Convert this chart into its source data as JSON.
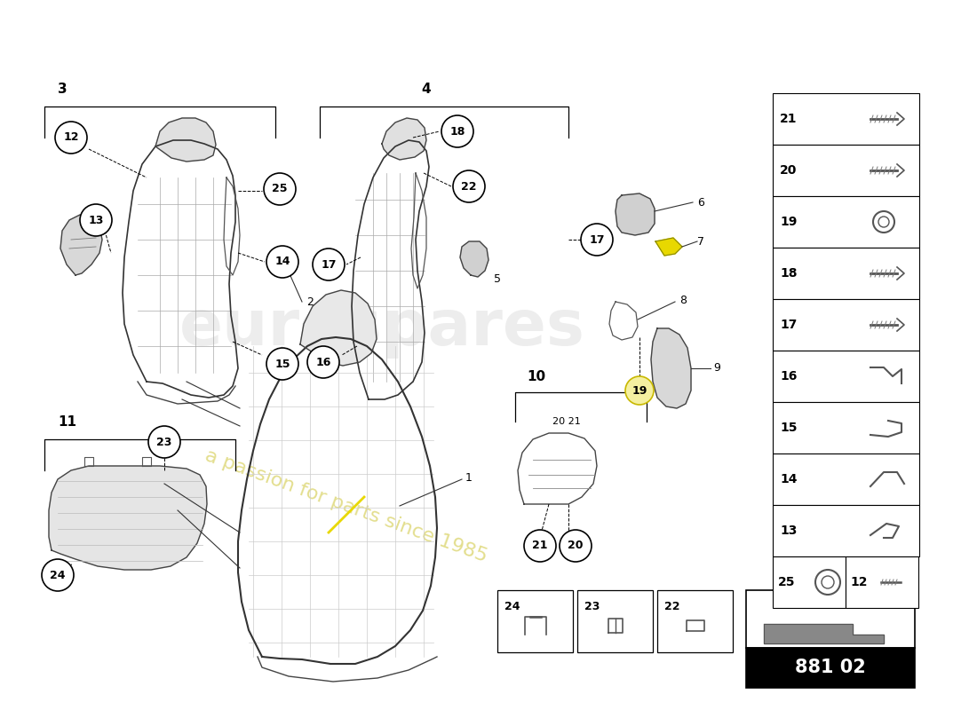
{
  "bg_color": "#ffffff",
  "part_number": "881 02",
  "watermark_color": "#cccccc",
  "watermark_yellow": "#d4cc50"
}
